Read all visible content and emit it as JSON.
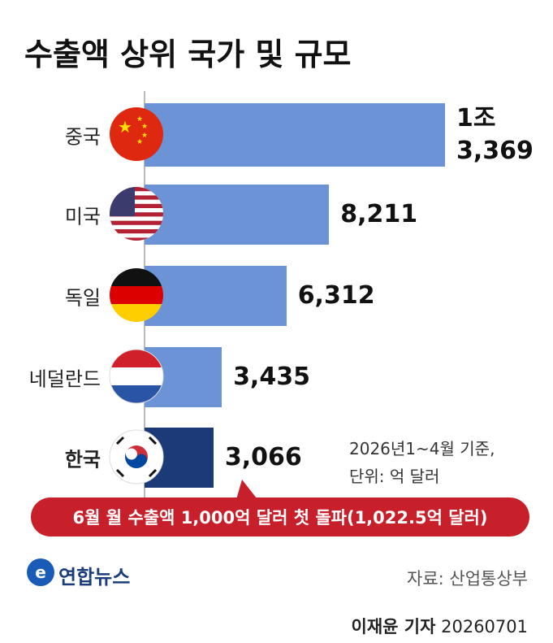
{
  "chart_data": {
    "type": "bar",
    "orientation": "horizontal",
    "title": "수출액 상위 국가 및 규모",
    "categories": [
      "중국",
      "미국",
      "독일",
      "네덜란드",
      "한국"
    ],
    "values": [
      13369,
      8211,
      6312,
      3435,
      3066
    ],
    "value_labels": [
      "1조\n3,369",
      "8,211",
      "6,312",
      "3,435",
      "3,066"
    ],
    "colors": [
      "#6b93d6",
      "#6b93d6",
      "#6b93d6",
      "#6b93d6",
      "#1c3a78"
    ],
    "note": [
      "2026년1~4월 기준,",
      "단위: 억 달러"
    ],
    "callout": "6월 월 수출액 1,000억 달러 첫 돌파(1,022.5억 달러)",
    "logo": "연합뉴스",
    "source": "자료: 산업통상부",
    "reporter": "이재윤 기자",
    "date": "20260701"
  }
}
